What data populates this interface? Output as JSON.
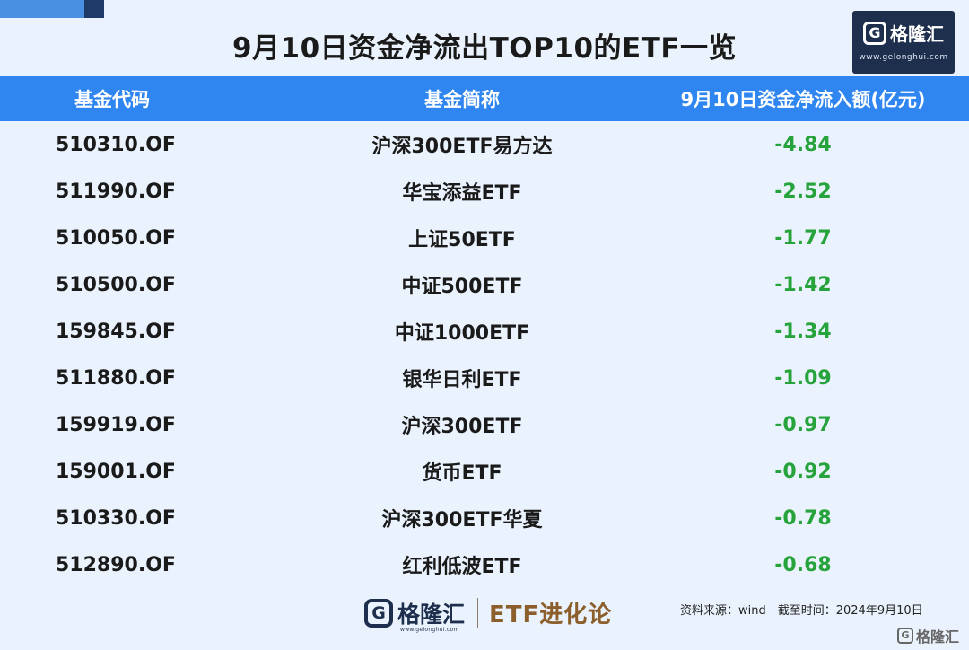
{
  "title": "9月10日资金净流出TOP10的ETF一览",
  "brand": {
    "name": "格隆汇",
    "url": "www.gelonghui.com",
    "mark": "G",
    "series": "ETF进化论"
  },
  "table": {
    "headers": [
      "基金代码",
      "基金简称",
      "9月10日资金净流入额(亿元)"
    ],
    "rows": [
      {
        "code": "510310.OF",
        "name": "沪深300ETF易方达",
        "value": "-4.84"
      },
      {
        "code": "511990.OF",
        "name": "华宝添益ETF",
        "value": "-2.52"
      },
      {
        "code": "510050.OF",
        "name": "上证50ETF",
        "value": "-1.77"
      },
      {
        "code": "510500.OF",
        "name": "中证500ETF",
        "value": "-1.42"
      },
      {
        "code": "159845.OF",
        "name": "中证1000ETF",
        "value": "-1.34"
      },
      {
        "code": "511880.OF",
        "name": "银华日利ETF",
        "value": "-1.09"
      },
      {
        "code": "159919.OF",
        "name": "沪深300ETF",
        "value": "-0.97"
      },
      {
        "code": "159001.OF",
        "name": "货币ETF",
        "value": "-0.92"
      },
      {
        "code": "510330.OF",
        "name": "沪深300ETF华夏",
        "value": "-0.78"
      },
      {
        "code": "512890.OF",
        "name": "红利低波ETF",
        "value": "-0.68"
      }
    ]
  },
  "footer": {
    "source": "资料来源：wind　截至时间：2024年9月10日"
  },
  "colors": {
    "header_bg": "#2f86f0",
    "negative_value": "#27a33c",
    "page_bg": "#eaf3fd",
    "brand_navy": "#1d2f4d"
  }
}
